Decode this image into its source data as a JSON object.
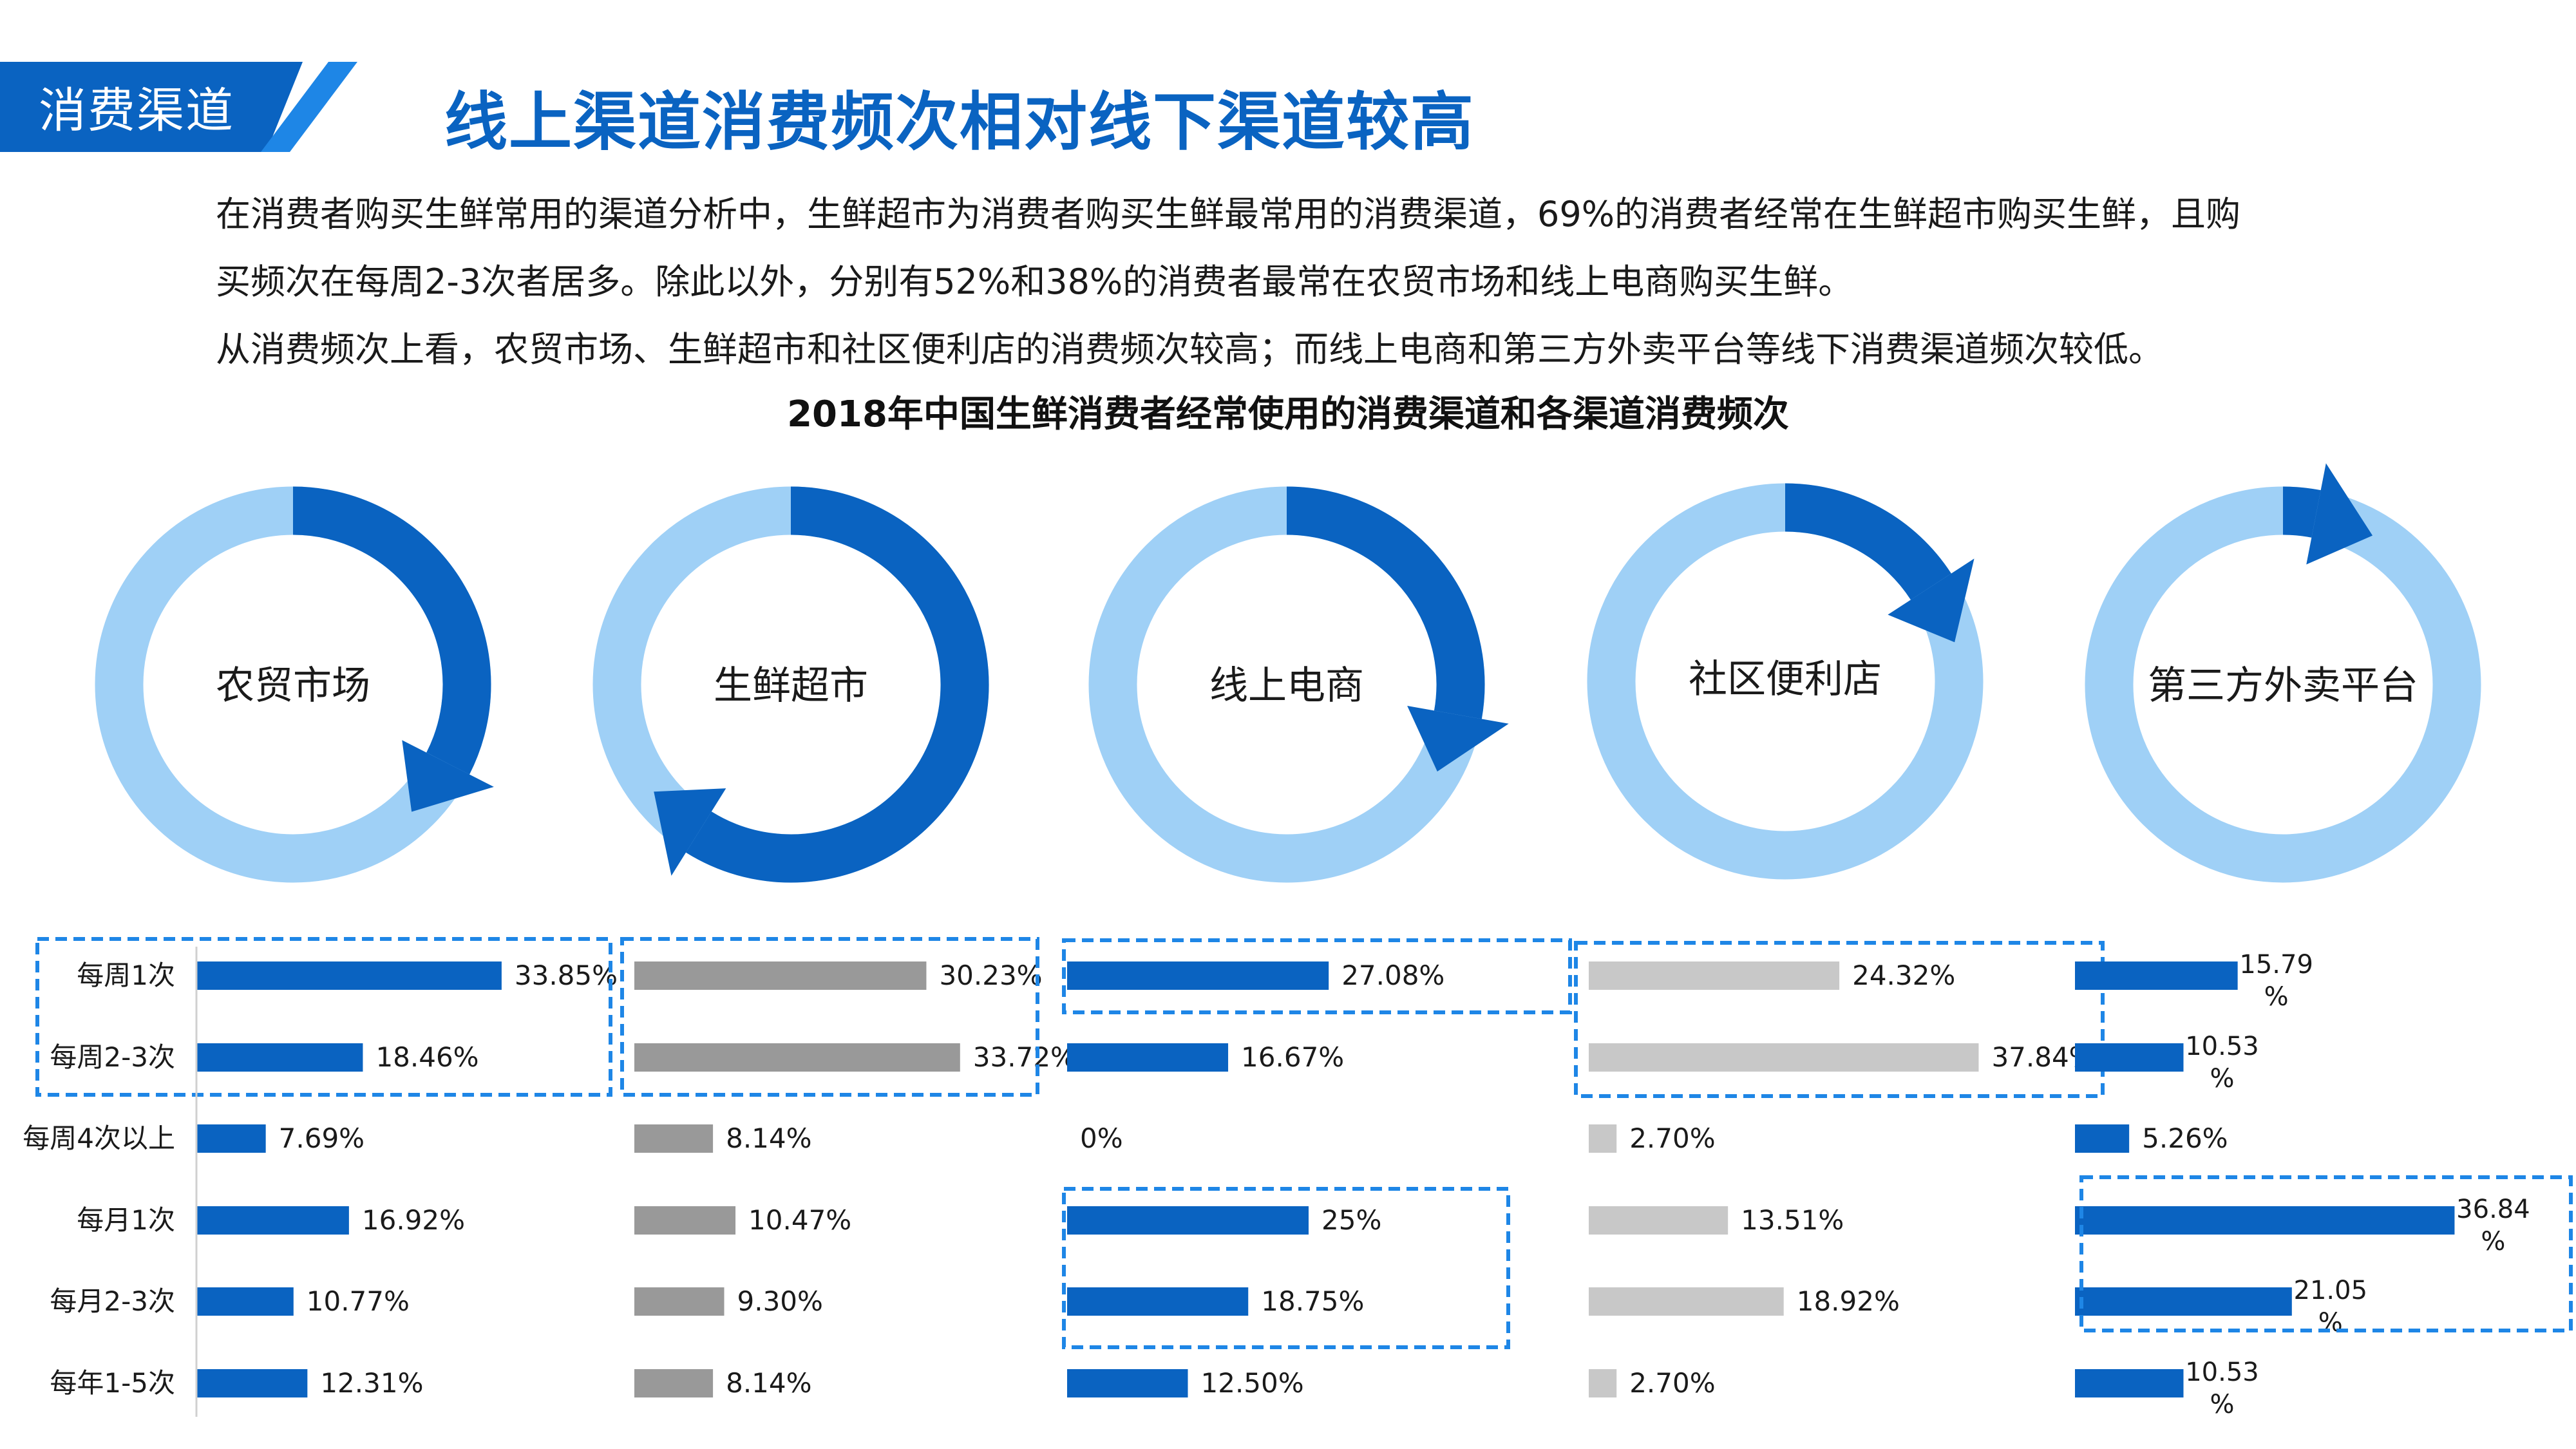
{
  "header": {
    "tag": "消费渠道",
    "title": "线上渠道消费频次相对线下渠道较高"
  },
  "description": [
    "在消费者购买生鲜常用的渠道分析中，生鲜超市为消费者购买生鲜最常用的消费渠道，69%的消费者经常在生鲜超市购买生鲜，且购",
    "买频次在每周2-3次者居多。除此以外，分别有52%和38%的消费者最常在农贸市场和线上电商购买生鲜。",
    "从消费频次上看，农贸市场、生鲜超市和社区便利店的消费频次较高；而线上电商和第三方外卖平台等线下消费渠道频次较低。"
  ],
  "colors": {
    "accent": "#0a63c1",
    "ring_light": "#9fd0f6",
    "bar_blue": "#0a63c1",
    "bar_gray": "#999999",
    "bar_lightgray": "#c8c8c8",
    "highlight_border": "#1e86e6"
  },
  "chart_data": {
    "type": "bar",
    "title": "2018年中国生鲜消费者经常使用的消费渠道和各渠道消费频次",
    "categories": [
      "每周1次",
      "每周2-3次",
      "每周4次以上",
      "每月1次",
      "每月2-3次",
      "每年1-5次"
    ],
    "series": [
      {
        "name": "农贸市场",
        "values": [
          33.85,
          18.46,
          7.69,
          16.92,
          10.77,
          12.31
        ],
        "labels": [
          "33.85%",
          "18.46%",
          "7.69%",
          "16.92%",
          "10.77%",
          "12.31%"
        ],
        "color": "#0a63c1",
        "share": 52,
        "highlight_rows": [
          0,
          1
        ]
      },
      {
        "name": "生鲜超市",
        "values": [
          30.23,
          33.72,
          8.14,
          10.47,
          9.3,
          8.14
        ],
        "labels": [
          "30.23%",
          "33.72%",
          "8.14%",
          "10.47%",
          "9.30%",
          "8.14%"
        ],
        "color": "#999999",
        "share": 69,
        "highlight_rows": [
          0,
          1
        ]
      },
      {
        "name": "线上电商",
        "values": [
          27.08,
          16.67,
          0,
          25,
          18.75,
          12.5
        ],
        "labels": [
          "27.08%",
          "16.67%",
          "0%",
          "25%",
          "18.75%",
          "12.50%"
        ],
        "color": "#0a63c1",
        "share": 38,
        "highlight_rows": [
          0,
          3,
          4
        ]
      },
      {
        "name": "社区便利店",
        "values": [
          24.32,
          37.84,
          2.7,
          13.51,
          18.92,
          2.7
        ],
        "labels": [
          "24.32%",
          "37.84%",
          "2.70%",
          "13.51%",
          "18.92%",
          "2.70%"
        ],
        "color": "#c8c8c8",
        "share": 28,
        "highlight_rows": [
          0,
          1
        ]
      },
      {
        "name": "第三方外卖平台",
        "values": [
          15.79,
          10.53,
          5.26,
          36.84,
          21.05,
          10.53
        ],
        "labels": [
          "15.79\n%",
          "10.53\n%",
          "5.26%",
          "36.84\n%",
          "21.05\n%",
          "10.53\n%"
        ],
        "color": "#0a63c1",
        "share": 14,
        "highlight_rows": [
          3,
          4
        ]
      }
    ]
  }
}
